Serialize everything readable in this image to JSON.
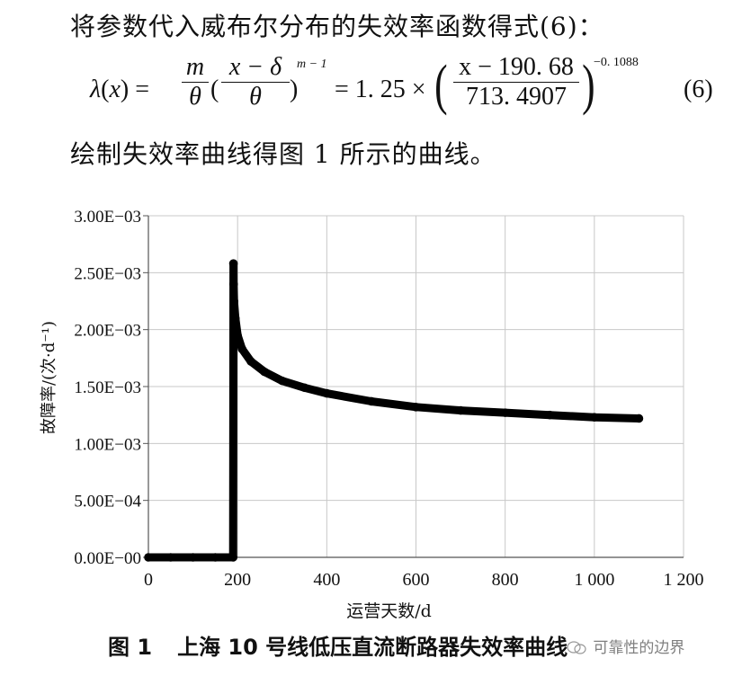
{
  "text": {
    "line1": "将参数代入威布尔分布的失效率函数得式(6)：",
    "line2": "绘制失效率曲线得图 1 所示的曲线。"
  },
  "formula": {
    "lhs": "λ(x) =",
    "frac1_num": "m",
    "frac1_den": "θ",
    "paren_open": "(",
    "frac2_num": "x − δ",
    "frac2_den": "θ",
    "paren_close": ")",
    "exp1": "m − 1",
    "equals_coef": "= 1. 25 ×",
    "frac3_num": "x − 190. 68",
    "frac3_den": "713. 4907",
    "exp2": "−0. 1088",
    "number": "(6)"
  },
  "chart_data": {
    "type": "line",
    "x_tick_labels": [
      "0",
      "200",
      "400",
      "600",
      "800",
      "1 000",
      "1 200"
    ],
    "y_tick_labels": [
      "0.00E−00",
      "5.00E−04",
      "1.00E−03",
      "1.50E−03",
      "2.00E−03",
      "2.50E−03",
      "3.00E−03"
    ],
    "xlabel": "运营天数/d",
    "ylabel": "故障率/(次·d⁻¹)",
    "xlim": [
      0,
      1200
    ],
    "ylim": [
      0,
      0.003
    ],
    "grid": true,
    "legend": "none",
    "series": [
      {
        "marker": "filled-circle",
        "color": "#000000",
        "x": [
          0,
          50,
          100,
          150,
          190,
          190.7,
          191,
          192,
          195,
          200,
          210,
          230,
          260,
          300,
          350,
          400,
          500,
          600,
          700,
          800,
          900,
          1000,
          1100
        ],
        "y": [
          0,
          0,
          0,
          0,
          0,
          0.00258,
          0.0024,
          0.00225,
          0.0021,
          0.00195,
          0.00183,
          0.00172,
          0.00163,
          0.00155,
          0.00149,
          0.00144,
          0.00137,
          0.00132,
          0.00129,
          0.00127,
          0.00125,
          0.00123,
          0.00122
        ]
      }
    ]
  },
  "caption": {
    "figure_number": "图 1",
    "title": "上海 10 号线低压直流断路器失效率曲线"
  },
  "watermark": {
    "text": "可靠性的边界"
  }
}
